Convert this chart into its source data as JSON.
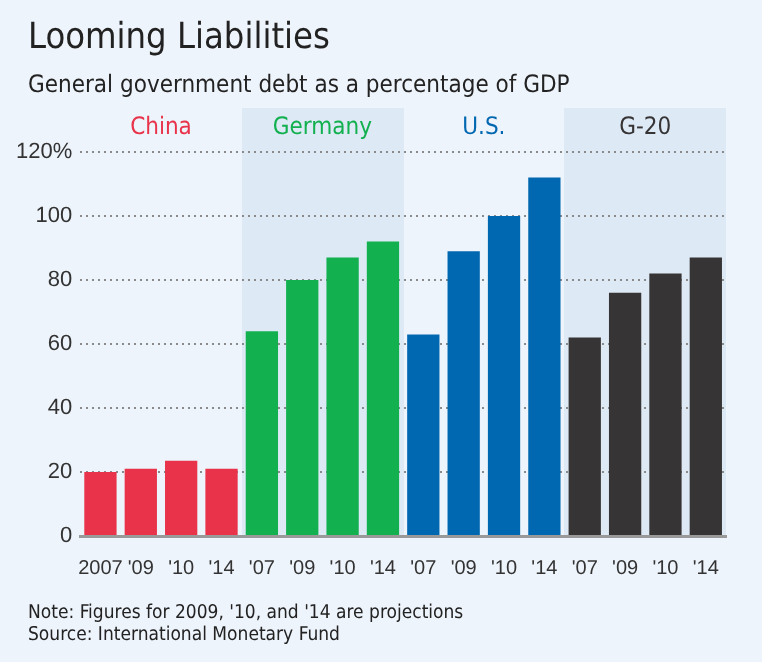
{
  "chart_data": {
    "type": "bar",
    "title": "Looming Liabilities",
    "subtitle": "General government debt as a percentage of GDP",
    "categories": [
      "2007",
      "'09",
      "'10",
      "'14",
      "'07",
      "'09",
      "'10",
      "'14",
      "'07",
      "'09",
      "'10",
      "'14",
      "'07",
      "'09",
      "'10",
      "'14"
    ],
    "series": [
      {
        "name": "China",
        "color": "#e8334a",
        "values": [
          20,
          21,
          23.5,
          21,
          null,
          null,
          null,
          null,
          null,
          null,
          null,
          null,
          null,
          null,
          null,
          null
        ]
      },
      {
        "name": "Germany",
        "color": "#12b04f",
        "values": [
          null,
          null,
          null,
          null,
          64,
          80,
          87,
          92,
          null,
          null,
          null,
          null,
          null,
          null,
          null,
          null
        ]
      },
      {
        "name": "U.S.",
        "color": "#0067b1",
        "values": [
          null,
          null,
          null,
          null,
          null,
          null,
          null,
          null,
          63,
          89,
          100,
          112,
          null,
          null,
          null,
          null
        ]
      },
      {
        "name": "G-20",
        "color": "#373435",
        "values": [
          null,
          null,
          null,
          null,
          null,
          null,
          null,
          null,
          null,
          null,
          null,
          null,
          62,
          76,
          82,
          87
        ]
      }
    ],
    "ylim": [
      0,
      120
    ],
    "yticks": [
      0,
      20,
      40,
      60,
      80,
      100,
      {
        "value": 120,
        "label": "120%"
      }
    ],
    "grid": "y",
    "legend": false,
    "annotations": [
      "Note: Figures for 2009, '10, and '14 are projections",
      "Source: International Monetary Fund"
    ]
  }
}
